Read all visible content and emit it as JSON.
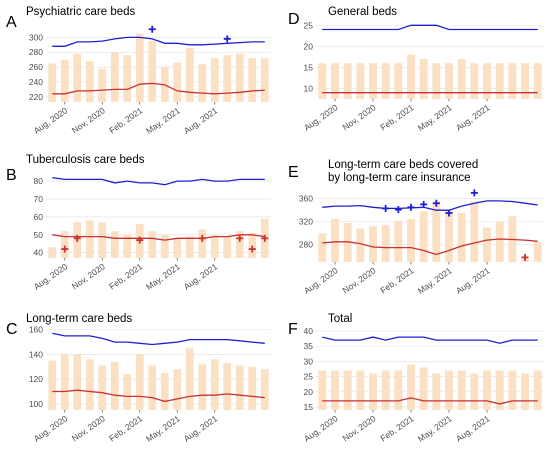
{
  "colors": {
    "bar": "#fbe0c4",
    "upper": "#1f1fd4",
    "lower": "#c83232",
    "plus_blue": "#1f1fd4",
    "plus_red": "#c83232",
    "grid": "#e6e6e6"
  },
  "x_tick_labels": [
    "Aug, 2020",
    "Nov, 2020",
    "Feb, 2021",
    "May, 2021",
    "Aug, 2021"
  ],
  "chart_data": [
    {
      "label": "A",
      "title": "Psychiatric care beds",
      "type": "bar+line",
      "yticks": [
        220,
        240,
        260,
        280,
        300
      ],
      "ylim": [
        213,
        314
      ],
      "bars": [
        265,
        270,
        278,
        268,
        258,
        280,
        276,
        305,
        295,
        260,
        266,
        286,
        264,
        272,
        276,
        278,
        272,
        272
      ],
      "upper": [
        288,
        288,
        294,
        294,
        295,
        298,
        300,
        300,
        298,
        292,
        292,
        290,
        290,
        291,
        292,
        293,
        294,
        294
      ],
      "lower": [
        224,
        224,
        228,
        228,
        229,
        230,
        230,
        237,
        238,
        236,
        228,
        226,
        225,
        224,
        225,
        226,
        228,
        229
      ],
      "plus_blue": [
        [
          8,
          311
        ],
        [
          14,
          298
        ]
      ],
      "plus_red": []
    },
    {
      "label": "B",
      "title": "Tuberculosis care beds",
      "type": "bar+line",
      "yticks": [
        40,
        50,
        60,
        70,
        80
      ],
      "ylim": [
        37,
        84
      ],
      "bars": [
        43,
        52,
        57,
        58,
        57,
        52,
        50,
        56,
        52,
        50,
        48,
        49,
        53,
        50,
        49,
        52,
        51,
        59
      ],
      "upper": [
        82,
        81,
        81,
        81,
        81,
        79,
        80,
        79,
        79,
        78,
        80,
        80,
        81,
        80,
        80,
        81,
        81,
        81
      ],
      "lower": [
        50,
        49,
        49,
        49,
        49,
        48,
        48,
        48,
        48,
        47,
        48,
        48,
        48,
        49,
        49,
        50,
        50,
        49
      ],
      "plus_blue": [],
      "plus_red": [
        [
          1,
          42
        ],
        [
          2,
          48
        ],
        [
          7,
          47
        ],
        [
          12,
          48
        ],
        [
          15,
          48
        ],
        [
          16,
          42
        ],
        [
          17,
          48
        ]
      ]
    },
    {
      "label": "C",
      "title": "Long-term care beds",
      "type": "bar+line",
      "yticks": [
        100,
        120,
        140,
        160
      ],
      "ylim": [
        95,
        163
      ],
      "bars": [
        135,
        140,
        140,
        136,
        131,
        134,
        124,
        140,
        131,
        125,
        128,
        145,
        132,
        136,
        133,
        131,
        130,
        128
      ],
      "upper": [
        157,
        155,
        155,
        155,
        153,
        150,
        150,
        149,
        148,
        149,
        150,
        152,
        152,
        152,
        152,
        151,
        150,
        149
      ],
      "lower": [
        110,
        110,
        111,
        110,
        109,
        107,
        106,
        106,
        105,
        102,
        104,
        106,
        107,
        107,
        108,
        107,
        106,
        105
      ],
      "plus_blue": [],
      "plus_red": []
    },
    {
      "label": "D",
      "title": "General beds",
      "type": "bar+line",
      "yticks": [
        10,
        15,
        20,
        25
      ],
      "ylim": [
        7.5,
        26.5
      ],
      "bars": [
        16,
        16,
        16,
        16,
        16,
        16,
        16,
        18,
        17,
        16,
        16,
        17,
        16,
        16,
        16,
        16,
        16,
        16
      ],
      "upper": [
        24,
        24,
        24,
        24,
        24,
        24,
        24,
        25,
        25,
        25,
        24,
        24,
        24,
        24,
        24,
        24,
        24,
        24
      ],
      "lower": [
        9,
        9,
        9,
        9,
        9,
        9,
        9,
        9,
        9,
        9,
        9,
        9,
        9,
        9,
        9,
        9,
        9,
        9
      ],
      "plus_blue": [],
      "plus_red": []
    },
    {
      "label": "E",
      "title": "Long-term care beds covered\nby long-term care insurance",
      "type": "bar+line",
      "yticks": [
        280,
        320,
        360
      ],
      "ylim": [
        250,
        375
      ],
      "bars": [
        300,
        325,
        318,
        308,
        312,
        314,
        322,
        325,
        338,
        355,
        340,
        335,
        355,
        310,
        320,
        330,
        255,
        285
      ],
      "upper": [
        345,
        347,
        347,
        348,
        345,
        343,
        343,
        344,
        345,
        340,
        340,
        347,
        352,
        356,
        356,
        355,
        352,
        349
      ],
      "lower": [
        283,
        285,
        285,
        282,
        276,
        275,
        275,
        275,
        270,
        263,
        270,
        278,
        283,
        288,
        290,
        289,
        288,
        286
      ],
      "plus_blue": [
        [
          5,
          343
        ],
        [
          6,
          341
        ],
        [
          7,
          345
        ],
        [
          8,
          350
        ],
        [
          9,
          352
        ],
        [
          10,
          335
        ],
        [
          12,
          370
        ]
      ],
      "plus_red": [
        [
          16,
          258
        ]
      ]
    },
    {
      "label": "F",
      "title": "Total",
      "type": "bar+line",
      "yticks": [
        15,
        20,
        25,
        30,
        35,
        40
      ],
      "ylim": [
        14,
        41
      ],
      "bars": [
        27,
        27,
        27,
        27,
        26,
        27,
        27,
        29,
        28,
        26,
        27,
        27,
        26,
        27,
        27,
        27,
        26,
        27
      ],
      "upper": [
        38,
        37,
        37,
        37,
        38,
        37,
        38,
        38,
        38,
        37,
        37,
        37,
        37,
        37,
        36,
        37,
        37,
        37
      ],
      "lower": [
        17,
        17,
        17,
        17,
        17,
        17,
        17,
        18,
        17,
        17,
        17,
        17,
        17,
        17,
        16,
        17,
        17,
        17
      ],
      "plus_blue": [],
      "plus_red": []
    }
  ]
}
